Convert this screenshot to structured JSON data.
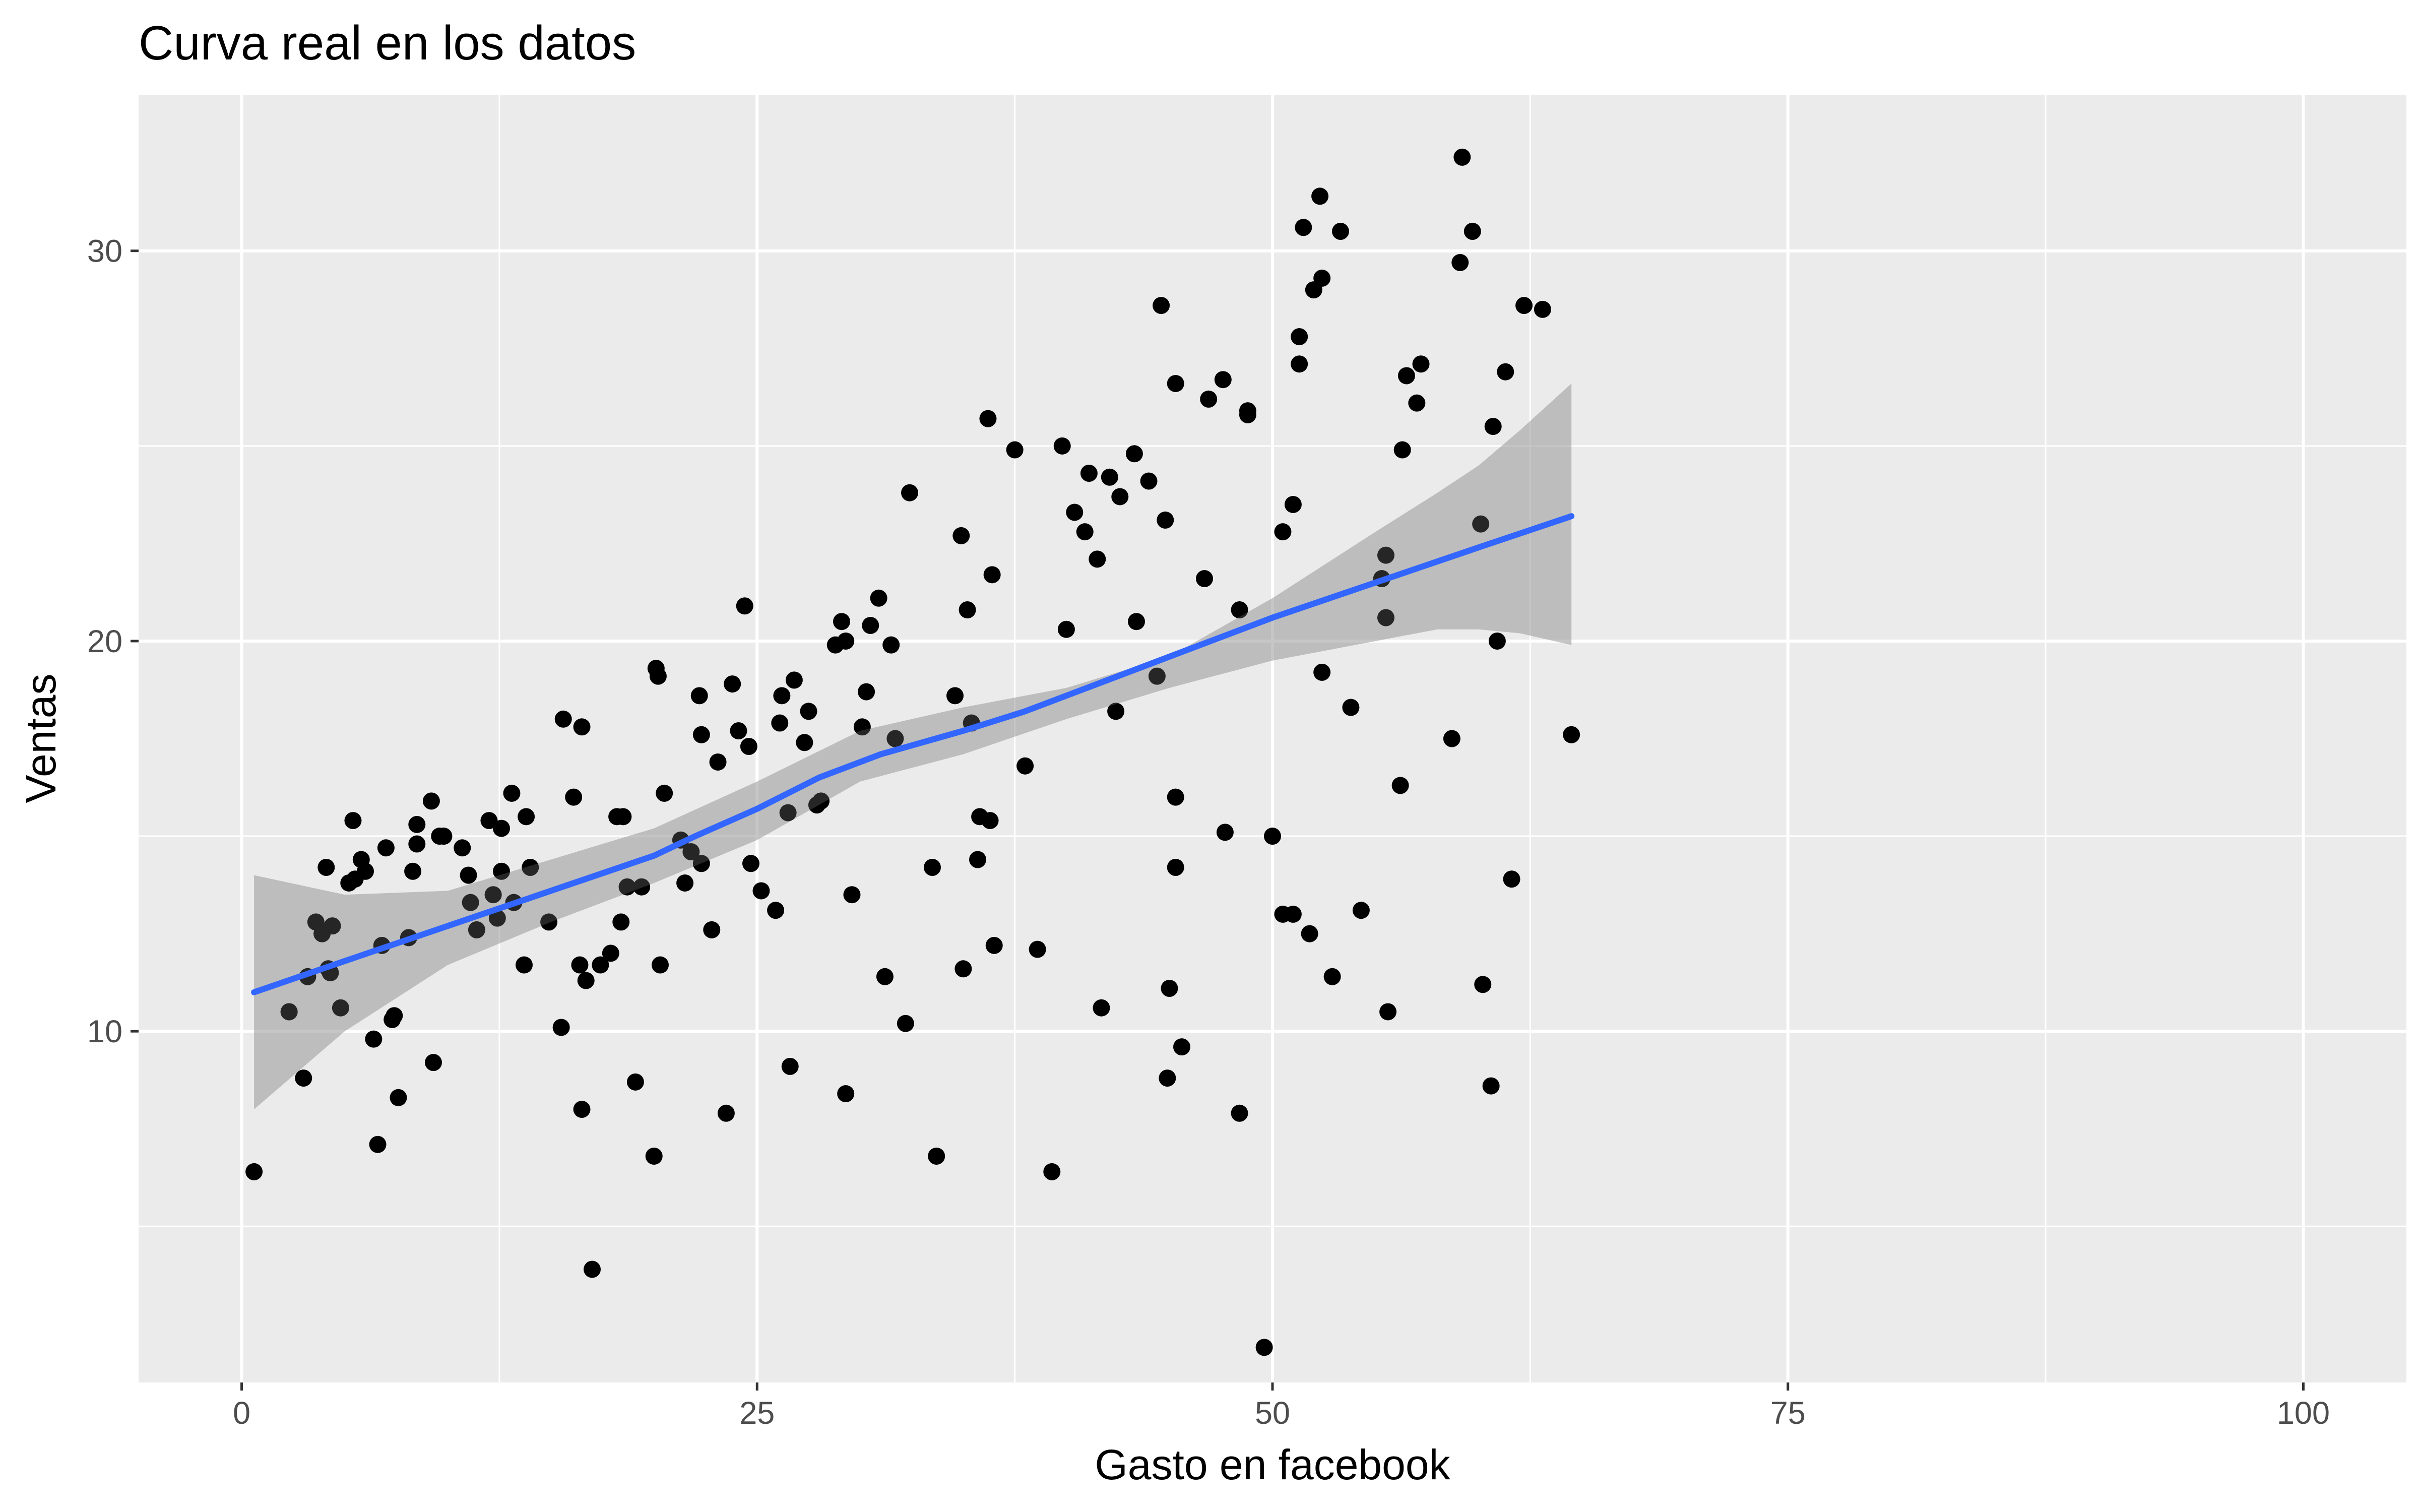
{
  "chart_data": {
    "type": "scatter",
    "title": "Curva real en los datos",
    "xlabel": "Gasto en facebook",
    "ylabel": "Ventas",
    "xlim": [
      -5,
      105
    ],
    "ylim": [
      1,
      34
    ],
    "x_ticks": [
      0,
      25,
      50,
      75,
      100
    ],
    "x_tick_labels": [
      "0",
      "25",
      "50",
      "75",
      "100"
    ],
    "y_ticks": [
      10,
      20,
      30
    ],
    "y_tick_labels": [
      "10",
      "20",
      "30"
    ],
    "grid": true,
    "legend": "none",
    "colors": {
      "panel": "#ebebeb",
      "grid": "#ffffff",
      "points": "#000000",
      "smooth_line": "#3366ff",
      "confidence_band": "#999999"
    },
    "series": [
      {
        "type": "scatter",
        "points": [
          [
            0.6,
            6.4
          ],
          [
            2.3,
            10.5
          ],
          [
            3.0,
            8.8
          ],
          [
            3.2,
            11.4
          ],
          [
            3.6,
            12.8
          ],
          [
            3.9,
            12.5
          ],
          [
            4.1,
            14.2
          ],
          [
            4.2,
            11.6
          ],
          [
            4.4,
            12.7
          ],
          [
            4.8,
            10.6
          ],
          [
            5.2,
            13.8
          ],
          [
            5.4,
            15.4
          ],
          [
            5.8,
            14.4
          ],
          [
            6.0,
            14.1
          ],
          [
            6.4,
            9.8
          ],
          [
            6.6,
            7.1
          ],
          [
            6.8,
            12.2
          ],
          [
            7.0,
            14.7
          ],
          [
            7.4,
            10.4
          ],
          [
            7.6,
            8.3
          ],
          [
            8.1,
            12.4
          ],
          [
            8.3,
            14.1
          ],
          [
            8.5,
            15.3
          ],
          [
            9.2,
            15.9
          ],
          [
            9.3,
            9.2
          ],
          [
            9.8,
            15.0
          ],
          [
            10.7,
            14.7
          ],
          [
            11.1,
            13.3
          ],
          [
            11.4,
            12.6
          ],
          [
            12.0,
            15.4
          ],
          [
            12.2,
            13.5
          ],
          [
            12.6,
            15.2
          ],
          [
            13.1,
            16.1
          ],
          [
            13.2,
            13.3
          ],
          [
            13.7,
            11.7
          ],
          [
            13.8,
            15.5
          ],
          [
            14.9,
            12.8
          ],
          [
            15.5,
            10.1
          ],
          [
            15.6,
            18.0
          ],
          [
            16.4,
            11.7
          ],
          [
            16.5,
            8.0
          ],
          [
            16.5,
            17.8
          ],
          [
            16.7,
            11.3
          ],
          [
            17.0,
            3.9
          ],
          [
            17.4,
            11.7
          ],
          [
            17.9,
            12.0
          ],
          [
            18.4,
            12.8
          ],
          [
            18.5,
            15.5
          ],
          [
            18.7,
            13.7
          ],
          [
            19.1,
            8.7
          ],
          [
            20.0,
            6.8
          ],
          [
            20.2,
            19.1
          ],
          [
            20.3,
            11.7
          ],
          [
            20.5,
            16.1
          ],
          [
            21.3,
            14.9
          ],
          [
            21.8,
            14.6
          ],
          [
            22.3,
            17.6
          ],
          [
            22.8,
            12.6
          ],
          [
            23.1,
            16.9
          ],
          [
            23.5,
            7.9
          ],
          [
            23.8,
            18.9
          ],
          [
            24.1,
            17.7
          ],
          [
            24.4,
            20.9
          ],
          [
            25.2,
            13.6
          ],
          [
            25.9,
            13.1
          ],
          [
            26.1,
            17.9
          ],
          [
            26.5,
            15.6
          ],
          [
            26.6,
            9.1
          ],
          [
            26.8,
            19.0
          ],
          [
            27.5,
            18.2
          ],
          [
            27.9,
            15.8
          ],
          [
            28.8,
            19.9
          ],
          [
            29.1,
            20.5
          ],
          [
            29.3,
            8.4
          ],
          [
            29.6,
            13.5
          ],
          [
            30.1,
            17.8
          ],
          [
            30.3,
            18.7
          ],
          [
            30.5,
            20.4
          ],
          [
            30.9,
            21.1
          ],
          [
            31.2,
            11.4
          ],
          [
            31.5,
            19.9
          ],
          [
            32.2,
            10.2
          ],
          [
            32.4,
            23.8
          ],
          [
            33.5,
            14.2
          ],
          [
            33.7,
            6.8
          ],
          [
            34.6,
            18.6
          ],
          [
            35.0,
            11.6
          ],
          [
            35.2,
            20.8
          ],
          [
            35.7,
            14.4
          ],
          [
            35.8,
            15.5
          ],
          [
            36.2,
            25.7
          ],
          [
            36.4,
            21.7
          ],
          [
            36.5,
            12.2
          ],
          [
            37.5,
            24.9
          ],
          [
            38.6,
            12.1
          ],
          [
            39.3,
            6.4
          ],
          [
            39.8,
            25.0
          ],
          [
            40.0,
            20.3
          ],
          [
            40.4,
            23.3
          ],
          [
            40.9,
            22.8
          ],
          [
            41.5,
            22.1
          ],
          [
            41.7,
            10.6
          ],
          [
            42.1,
            24.2
          ],
          [
            42.6,
            23.7
          ],
          [
            43.3,
            24.8
          ],
          [
            43.4,
            20.5
          ],
          [
            44.0,
            24.1
          ],
          [
            44.4,
            19.1
          ],
          [
            44.6,
            28.6
          ],
          [
            44.9,
            8.8
          ],
          [
            45.0,
            11.1
          ],
          [
            45.3,
            16.0
          ],
          [
            45.3,
            14.2
          ],
          [
            45.6,
            9.6
          ],
          [
            46.7,
            21.6
          ],
          [
            47.6,
            26.7
          ],
          [
            47.7,
            15.1
          ],
          [
            48.4,
            7.9
          ],
          [
            48.8,
            25.8
          ],
          [
            49.6,
            1.9
          ],
          [
            50.0,
            15.0
          ],
          [
            50.5,
            22.8
          ],
          [
            51.0,
            23.5
          ],
          [
            51.3,
            27.8
          ],
          [
            51.3,
            27.1
          ],
          [
            51.5,
            30.6
          ],
          [
            51.8,
            12.5
          ],
          [
            52.0,
            29.0
          ],
          [
            52.3,
            31.4
          ],
          [
            52.4,
            29.3
          ],
          [
            52.9,
            11.4
          ],
          [
            53.3,
            30.5
          ],
          [
            53.8,
            18.3
          ],
          [
            54.3,
            13.1
          ],
          [
            55.3,
            21.6
          ],
          [
            55.5,
            20.6
          ],
          [
            55.6,
            10.5
          ],
          [
            56.2,
            16.3
          ],
          [
            56.5,
            26.8
          ],
          [
            57.0,
            26.1
          ],
          [
            57.2,
            27.1
          ],
          [
            58.7,
            17.5
          ],
          [
            59.1,
            29.7
          ],
          [
            59.2,
            32.4
          ],
          [
            59.7,
            30.5
          ],
          [
            60.1,
            23.0
          ],
          [
            60.2,
            11.2
          ],
          [
            60.6,
            8.6
          ],
          [
            60.9,
            20.0
          ],
          [
            61.3,
            26.9
          ],
          [
            61.6,
            13.9
          ],
          [
            62.2,
            28.6
          ],
          [
            63.1,
            28.5
          ],
          [
            64.5,
            17.6
          ],
          [
            2.3,
            10.5
          ],
          [
            4.3,
            11.5
          ],
          [
            5.5,
            13.9
          ],
          [
            7.3,
            10.3
          ],
          [
            9.6,
            15.0
          ],
          [
            11.0,
            14.0
          ],
          [
            12.6,
            14.1
          ],
          [
            14.0,
            14.2
          ],
          [
            16.1,
            16.0
          ],
          [
            18.2,
            15.5
          ],
          [
            20.1,
            19.3
          ],
          [
            21.5,
            13.8
          ],
          [
            22.3,
            14.3
          ],
          [
            22.2,
            18.6
          ],
          [
            24.7,
            14.3
          ],
          [
            26.2,
            18.6
          ],
          [
            27.3,
            17.4
          ],
          [
            29.3,
            20.0
          ],
          [
            31.7,
            17.5
          ],
          [
            34.9,
            22.7
          ],
          [
            35.4,
            17.9
          ],
          [
            36.3,
            15.4
          ],
          [
            38.0,
            16.8
          ],
          [
            42.4,
            18.2
          ],
          [
            44.8,
            23.1
          ],
          [
            45.3,
            26.6
          ],
          [
            46.9,
            26.2
          ],
          [
            48.4,
            20.8
          ],
          [
            50.5,
            13.0
          ],
          [
            51.0,
            13.0
          ],
          [
            52.4,
            19.2
          ],
          [
            55.5,
            22.2
          ],
          [
            56.3,
            24.9
          ],
          [
            60.7,
            25.5
          ],
          [
            8.5,
            14.8
          ],
          [
            12.4,
            12.9
          ],
          [
            19.4,
            13.7
          ],
          [
            24.6,
            17.3
          ],
          [
            28.1,
            15.9
          ],
          [
            41.1,
            24.3
          ],
          [
            48.8,
            25.9
          ]
        ]
      },
      {
        "type": "line",
        "name": "",
        "points": [
          [
            0.6,
            11.0
          ],
          [
            5,
            11.8
          ],
          [
            10,
            12.7
          ],
          [
            15,
            13.6
          ],
          [
            20,
            14.5
          ],
          [
            22,
            15.0
          ],
          [
            25,
            15.7
          ],
          [
            28,
            16.5
          ],
          [
            31,
            17.1
          ],
          [
            35,
            17.7
          ],
          [
            38,
            18.2
          ],
          [
            42,
            19.0
          ],
          [
            47,
            20.0
          ],
          [
            50,
            20.6
          ],
          [
            55,
            21.5
          ],
          [
            60,
            22.4
          ],
          [
            64.5,
            23.2
          ]
        ],
        "band_lower": [
          [
            0.6,
            8.0
          ],
          [
            5,
            10.0
          ],
          [
            10,
            11.7
          ],
          [
            15,
            12.8
          ],
          [
            20,
            13.8
          ],
          [
            25,
            14.9
          ],
          [
            30,
            16.4
          ],
          [
            35,
            17.1
          ],
          [
            40,
            18.0
          ],
          [
            45,
            18.8
          ],
          [
            50,
            19.5
          ],
          [
            55,
            20.0
          ],
          [
            58,
            20.3
          ],
          [
            60,
            20.3
          ],
          [
            62,
            20.2
          ],
          [
            64.5,
            19.9
          ]
        ],
        "band_upper": [
          [
            0.6,
            14.0
          ],
          [
            5,
            13.5
          ],
          [
            10,
            13.6
          ],
          [
            15,
            14.4
          ],
          [
            20,
            15.2
          ],
          [
            25,
            16.4
          ],
          [
            30,
            17.7
          ],
          [
            35,
            18.3
          ],
          [
            40,
            18.8
          ],
          [
            45,
            19.6
          ],
          [
            50,
            21.1
          ],
          [
            55,
            22.8
          ],
          [
            58,
            23.8
          ],
          [
            60,
            24.5
          ],
          [
            62,
            25.4
          ],
          [
            64.5,
            26.6
          ]
        ]
      }
    ]
  }
}
